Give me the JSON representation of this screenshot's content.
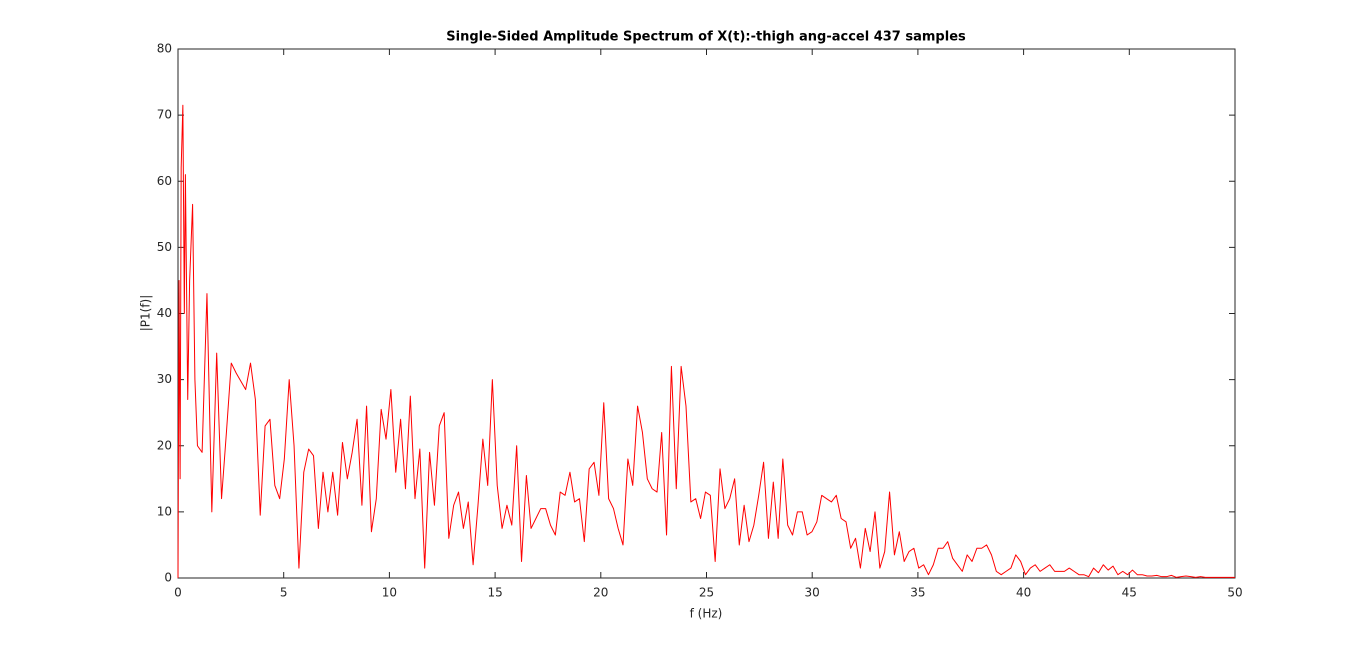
{
  "chart_data": {
    "type": "line",
    "title": "Single-Sided Amplitude Spectrum of X(t):-thigh ang-accel 437 samples",
    "xlabel": "f (Hz)",
    "ylabel": "|P1(f)|",
    "xlim": [
      0,
      50
    ],
    "ylim": [
      0,
      80
    ],
    "xticks": [
      0,
      5,
      10,
      15,
      20,
      25,
      30,
      35,
      40,
      45,
      50
    ],
    "yticks": [
      0,
      10,
      20,
      30,
      40,
      50,
      60,
      70,
      80
    ],
    "grid": false,
    "color": "#ff0000",
    "x": [
      0,
      0.05,
      0.1,
      0.15,
      0.23,
      0.3,
      0.35,
      0.46,
      0.55,
      0.69,
      0.8,
      0.92,
      1.14,
      1.37,
      1.6,
      1.83,
      2.06,
      2.29,
      2.52,
      2.75,
      3.2,
      3.43,
      3.66,
      3.89,
      4.12,
      4.35,
      4.58,
      4.81,
      5.03,
      5.26,
      5.49,
      5.72,
      5.95,
      6.18,
      6.41,
      6.64,
      6.86,
      7.09,
      7.32,
      7.55,
      7.78,
      8.01,
      8.24,
      8.47,
      8.7,
      8.92,
      9.15,
      9.38,
      9.61,
      9.84,
      10.07,
      10.3,
      10.53,
      10.76,
      10.99,
      11.21,
      11.44,
      11.67,
      11.9,
      12.13,
      12.36,
      12.59,
      12.81,
      13.04,
      13.27,
      13.5,
      13.73,
      13.96,
      14.19,
      14.42,
      14.65,
      14.87,
      15.1,
      15.33,
      15.56,
      15.79,
      16.02,
      16.25,
      16.48,
      16.7,
      16.93,
      17.16,
      17.39,
      17.62,
      17.85,
      18.08,
      18.31,
      18.54,
      18.76,
      18.99,
      19.22,
      19.45,
      19.68,
      19.91,
      20.14,
      20.37,
      20.6,
      20.82,
      21.05,
      21.28,
      21.51,
      21.74,
      21.97,
      22.2,
      22.43,
      22.66,
      22.88,
      23.11,
      23.34,
      23.57,
      23.8,
      24.03,
      24.26,
      24.49,
      24.72,
      24.95,
      25.18,
      25.41,
      25.64,
      25.87,
      26.1,
      26.33,
      26.55,
      26.78,
      27.01,
      27.24,
      27.47,
      27.7,
      27.93,
      28.16,
      28.39,
      28.61,
      28.84,
      29.07,
      29.3,
      29.53,
      29.76,
      29.99,
      30.22,
      30.45,
      30.68,
      30.91,
      31.14,
      31.37,
      31.6,
      31.82,
      32.05,
      32.28,
      32.51,
      32.74,
      32.97,
      33.2,
      33.43,
      33.66,
      33.89,
      34.12,
      34.35,
      34.58,
      34.81,
      35.04,
      35.27,
      35.5,
      35.73,
      35.96,
      36.19,
      36.41,
      36.64,
      36.87,
      37.1,
      37.33,
      37.56,
      37.79,
      38.02,
      38.25,
      38.48,
      38.71,
      38.94,
      39.17,
      39.4,
      39.63,
      39.86,
      40.09,
      40.32,
      40.55,
      40.78,
      41.01,
      41.24,
      41.47,
      41.7,
      41.93,
      42.16,
      42.39,
      42.62,
      42.85,
      43.08,
      43.31,
      43.54,
      43.77,
      44.0,
      44.23,
      44.46,
      44.69,
      44.92,
      45.15,
      45.38,
      45.61,
      45.84,
      46.07,
      46.3,
      46.53,
      46.76,
      46.99,
      47.22,
      47.45,
      47.68,
      47.91,
      48.14,
      48.37,
      48.6,
      50
    ],
    "values": [
      0,
      45,
      15,
      62,
      71.5,
      40,
      61,
      27,
      45,
      56.5,
      30,
      20,
      19,
      43,
      10,
      34,
      12,
      22,
      32.5,
      31,
      28.5,
      32.5,
      27,
      9.5,
      23,
      24,
      14,
      12,
      18,
      30,
      20,
      1.5,
      16,
      19.5,
      18.5,
      7.5,
      16,
      10,
      16,
      9.5,
      20.5,
      15,
      19,
      24,
      11,
      26,
      7,
      12,
      25.5,
      21,
      28.5,
      16,
      24,
      13.5,
      27.5,
      12,
      19.5,
      1.5,
      19,
      11,
      23,
      25,
      6,
      11,
      13,
      7.5,
      11.5,
      2,
      11,
      21,
      14,
      30,
      14,
      7.5,
      11,
      8,
      20,
      2.5,
      15.5,
      7.5,
      9,
      10.5,
      10.5,
      8,
      6.5,
      13,
      12.5,
      16,
      11.5,
      12,
      5.5,
      16.5,
      17.5,
      12.5,
      26.5,
      12,
      10.5,
      7.5,
      5,
      18,
      14,
      26,
      22,
      15,
      13.5,
      13,
      22,
      6.5,
      32,
      13.5,
      32,
      26,
      11.5,
      12,
      9,
      13,
      12.5,
      2.5,
      16.5,
      10.5,
      12,
      15,
      5,
      11,
      5.5,
      8,
      12.5,
      17.5,
      6,
      14.5,
      6,
      18,
      8,
      6.5,
      10,
      10,
      6.5,
      7,
      8.5,
      12.5,
      12,
      11.5,
      12.5,
      9,
      8.5,
      4.5,
      6,
      1.5,
      7.5,
      4,
      10,
      1.5,
      4,
      13,
      3.5,
      7,
      2.5,
      4,
      4.5,
      1.5,
      2,
      0.5,
      2,
      4.5,
      4.5,
      5.5,
      3,
      2,
      1,
      3.5,
      2.5,
      4.5,
      4.5,
      5,
      3.5,
      1,
      0.5,
      1,
      1.5,
      3.5,
      2.5,
      0.5,
      1.5,
      2,
      1,
      1.5,
      2,
      1,
      1,
      1,
      1.5,
      1,
      0.5,
      0.5,
      0.2,
      1.5,
      0.8,
      2,
      1.2,
      1.8,
      0.5,
      1,
      0.5,
      1.2,
      0.5,
      0.5,
      0.3,
      0.3,
      0.4,
      0.2,
      0.2,
      0.4,
      0.1,
      0.2,
      0.3,
      0.2,
      0.1,
      0.2,
      0.1,
      0.1
    ]
  }
}
